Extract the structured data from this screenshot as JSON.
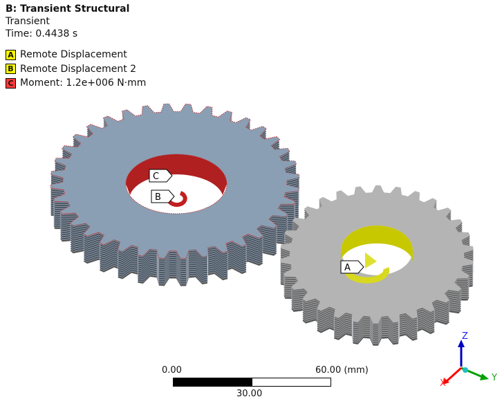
{
  "header": {
    "title": "B: Transient Structural",
    "type": "Transient",
    "time": "Time: 0.4438 s"
  },
  "legend": [
    {
      "key": "A",
      "label": "Remote Displacement",
      "color": "#ffff00"
    },
    {
      "key": "B",
      "label": "Remote Displacement 2",
      "color": "#ffff00"
    },
    {
      "key": "C",
      "label": "Moment: 1.2e+006 N·mm",
      "color": "#ff3a3a"
    }
  ],
  "tags": {
    "a": "A",
    "b": "B",
    "c": "C"
  },
  "scale": {
    "min": "0.00",
    "max": "60.00 (mm)",
    "mid": "30.00"
  },
  "triad": {
    "x": "X",
    "y": "Y",
    "z": "Z",
    "x_color": "#ff0000",
    "y_color": "#00a000",
    "z_color": "#0000c0"
  },
  "colors": {
    "big_gear": "#8a9fb4",
    "small_gear": "#b4b4b4",
    "moment": "#b02020",
    "remote": "#c8c800"
  }
}
